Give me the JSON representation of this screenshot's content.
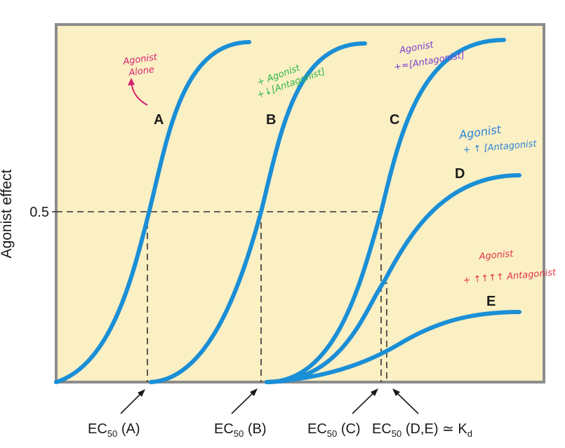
{
  "axis": {
    "y_title": "Agonist effect",
    "y_tick": "0.5"
  },
  "curves": {
    "A": "A",
    "B": "B",
    "C": "C",
    "D": "D",
    "E": "E"
  },
  "ec_labels": {
    "a": {
      "prefix": "EC",
      "sub": "50",
      "suffix": " (A)"
    },
    "b": {
      "prefix": "EC",
      "sub": "50",
      "suffix": " (B)"
    },
    "c": {
      "prefix": "EC",
      "sub": "50",
      "suffix": " (C)"
    },
    "de": {
      "prefix": "EC",
      "sub": "50",
      "suffix": " (D,E) ≃ K",
      "suffix_sub": "d"
    }
  },
  "annotations": {
    "a": {
      "line1": "Agonist",
      "line2": "Alone",
      "color": "#d6246e"
    },
    "b": {
      "line1": "+ Agonist",
      "line2": "+↓[Antagonist]",
      "color": "#2fb84a"
    },
    "c": {
      "line1": "Agonist",
      "line2": "+≈[Antagonist]",
      "color": "#7b3fd0"
    },
    "d": {
      "line1": "Agonist",
      "line2": "+ ↑ [Antagonist",
      "color": "#2a86d6"
    },
    "e": {
      "line1": "Agonist",
      "line2": "+ ↑↑↑↑ Antagonist",
      "color": "#e0354a"
    }
  },
  "colors": {
    "background": "#fbefc4",
    "frame": "#8c8c8c",
    "curve": "#1a8fd6"
  }
}
